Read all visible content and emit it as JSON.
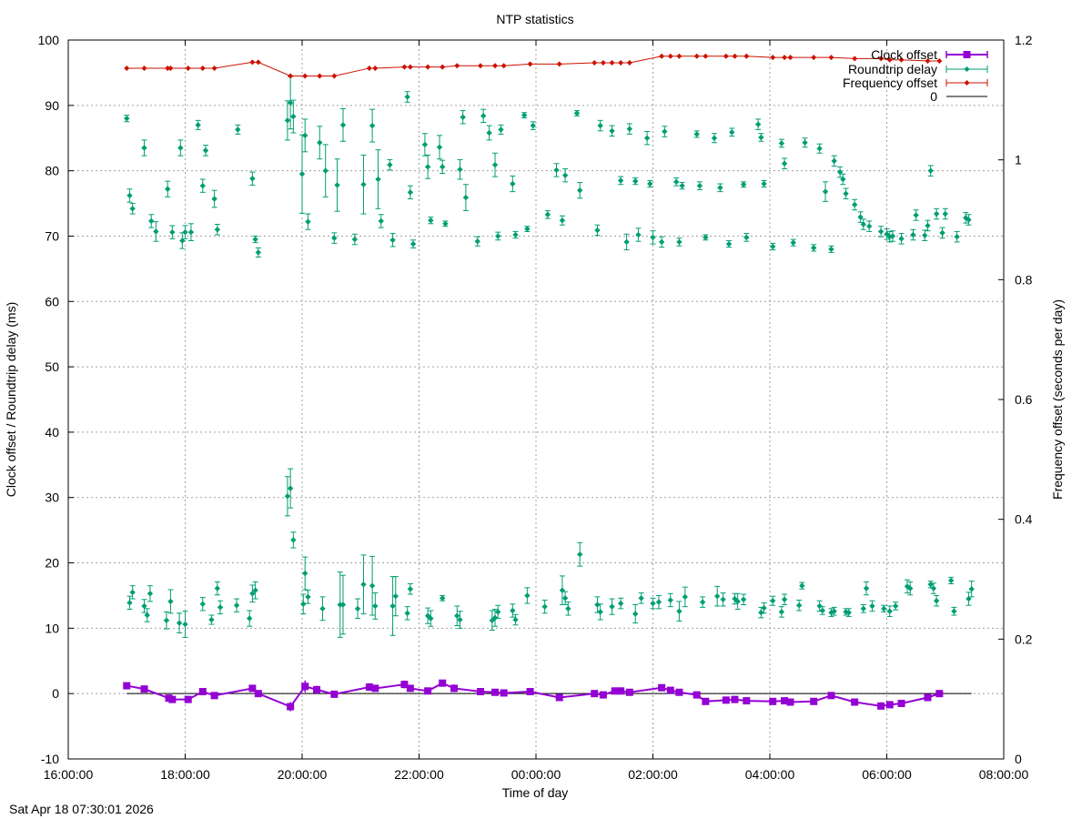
{
  "timestamp": "Sat Apr 18 07:30:01 2026",
  "colors": {
    "clock": "#9400d3",
    "roundtrip": "#009e73",
    "frequency": "#cc1100",
    "zero": "#000000",
    "grid": "#a0a0a0"
  },
  "chart_data": {
    "type": "scatter",
    "title": "NTP statistics",
    "xlabel": "Time of day",
    "ylabel": "Clock offset / Roundtrip delay (ms)",
    "y2label": "Frequency offset (seconds per day)",
    "xlim": [
      16.0,
      32.0
    ],
    "ylim": [
      -10,
      100
    ],
    "y2lim": [
      0,
      1.2
    ],
    "xticks": [
      16,
      18,
      20,
      22,
      24,
      26,
      28,
      30,
      32
    ],
    "xtick_labels": [
      "16:00:00",
      "18:00:00",
      "20:00:00",
      "22:00:00",
      "00:00:00",
      "02:00:00",
      "04:00:00",
      "06:00:00",
      "08:00:00"
    ],
    "yticks": [
      -10,
      0,
      10,
      20,
      30,
      40,
      50,
      60,
      70,
      80,
      90,
      100
    ],
    "ytick_labels": [
      "-10",
      "0",
      "10",
      "20",
      "30",
      "40",
      "50",
      "60",
      "70",
      "80",
      "90",
      "100"
    ],
    "y2ticks": [
      0,
      0.2,
      0.4,
      0.6,
      0.8,
      1.0,
      1.2
    ],
    "y2tick_labels": [
      "0",
      "0.2",
      "0.4",
      "0.6",
      "0.8",
      "1",
      "1.2"
    ],
    "grid": true,
    "legend_position": "top-right",
    "legend": [
      "Clock offset",
      "Roundtrip delay",
      "Frequency offset",
      "0"
    ],
    "series": [
      {
        "name": "Clock offset",
        "axis": "y1",
        "style": "linespoints-errorbars",
        "x": [
          17.0,
          17.3,
          17.72,
          17.78,
          18.05,
          18.3,
          18.5,
          19.15,
          19.25,
          19.8,
          20.05,
          20.25,
          20.55,
          21.15,
          21.25,
          21.75,
          21.85,
          22.15,
          22.4,
          22.6,
          23.05,
          23.3,
          23.45,
          23.9,
          24.4,
          25.0,
          25.15,
          25.35,
          25.45,
          25.6,
          26.15,
          26.3,
          26.45,
          26.75,
          26.9,
          27.25,
          27.4,
          27.6,
          28.05,
          28.25,
          28.35,
          28.75,
          29.05,
          29.45,
          29.9,
          30.05,
          30.25,
          30.7,
          30.9
        ],
        "y": [
          1.2,
          0.7,
          -0.7,
          -0.9,
          -0.9,
          0.3,
          -0.3,
          0.8,
          0.0,
          -2.0,
          1.1,
          0.6,
          -0.1,
          1.0,
          0.8,
          1.4,
          0.8,
          0.4,
          1.6,
          0.8,
          0.3,
          0.2,
          0.1,
          0.3,
          -0.6,
          0.0,
          -0.2,
          0.4,
          0.4,
          0.2,
          0.9,
          0.5,
          0.2,
          -0.2,
          -1.2,
          -1.0,
          -0.9,
          -1.1,
          -1.2,
          -1.1,
          -1.3,
          -1.2,
          -0.3,
          -1.3,
          -1.9,
          -1.7,
          -1.5,
          -0.6,
          0.0
        ],
        "err": [
          0.4,
          0.3,
          0.3,
          0.3,
          0.3,
          0.3,
          0.3,
          0.3,
          0.3,
          0.7,
          0.9,
          0.6,
          0.4,
          0.6,
          0.5,
          0.6,
          0.5,
          0.3,
          0.5,
          0.6,
          0.3,
          0.3,
          0.3,
          0.3,
          0.3,
          0.3,
          0.3,
          0.3,
          0.3,
          0.3,
          0.4,
          0.3,
          0.3,
          0.3,
          0.3,
          0.3,
          0.3,
          0.3,
          0.3,
          0.3,
          0.3,
          0.3,
          0.3,
          0.3,
          0.3,
          0.3,
          0.3,
          0.3,
          0.3
        ]
      },
      {
        "name": "Roundtrip delay",
        "axis": "y1",
        "style": "points-errorbars",
        "x": [
          17.0,
          17.05,
          17.1,
          17.3,
          17.42,
          17.5,
          17.7,
          17.78,
          17.92,
          17.95,
          18.0,
          18.1,
          18.22,
          18.3,
          18.35,
          18.5,
          18.55,
          18.9,
          19.15,
          19.2,
          19.25,
          19.75,
          19.8,
          19.85,
          20.0,
          20.05,
          20.1,
          20.3,
          20.4,
          20.55,
          20.6,
          20.7,
          20.9,
          21.05,
          21.2,
          21.3,
          21.35,
          21.5,
          21.55,
          21.8,
          21.85,
          21.9,
          22.1,
          22.15,
          22.2,
          22.35,
          22.4,
          22.45,
          22.7,
          22.75,
          22.8,
          23.0,
          23.1,
          23.2,
          23.3,
          23.35,
          23.4,
          23.6,
          23.65,
          23.8,
          23.85,
          23.95,
          24.2,
          24.35,
          24.45,
          24.5,
          24.7,
          24.75,
          25.05,
          25.1,
          25.3,
          25.45,
          25.55,
          25.6,
          25.7,
          25.75,
          25.9,
          25.95,
          26.0,
          26.15,
          26.2,
          26.4,
          26.45,
          26.5,
          26.75,
          26.8,
          26.9,
          27.05,
          27.15,
          27.3,
          27.35,
          27.55,
          27.6,
          27.8,
          27.85,
          27.9,
          28.05,
          28.2,
          28.25,
          28.4,
          28.6,
          28.75,
          28.85,
          28.95,
          29.05,
          29.1,
          29.2,
          29.25,
          29.3,
          29.45,
          29.55,
          29.6,
          29.7,
          29.9,
          30.0,
          30.05,
          30.1,
          30.25,
          30.45,
          30.5,
          30.65,
          30.7,
          30.75,
          30.85,
          30.95,
          31.0,
          31.2,
          31.35,
          31.4
        ],
        "y": [
          88.0,
          76.2,
          74.2,
          83.5,
          72.3,
          70.7,
          77.2,
          70.6,
          83.5,
          69.3,
          70.6,
          70.6,
          87.0,
          77.7,
          83.1,
          75.7,
          71.0,
          86.3,
          78.8,
          69.5,
          67.5,
          87.7,
          90.4,
          88.3,
          79.5,
          85.4,
          72.2,
          84.3,
          80.0,
          69.7,
          77.8,
          87.0,
          69.5,
          77.9,
          86.9,
          78.7,
          72.3,
          80.9,
          69.4,
          91.3,
          76.7,
          68.8,
          84.0,
          80.6,
          72.4,
          83.6,
          80.6,
          71.9,
          80.2,
          88.2,
          75.9,
          69.2,
          88.4,
          85.8,
          80.9,
          70.0,
          86.3,
          78.0,
          70.2,
          88.5,
          71.1,
          86.9,
          73.3,
          80.1,
          72.4,
          79.3,
          88.8,
          77.0,
          70.9,
          86.9,
          86.1,
          78.5,
          69.1,
          86.4,
          78.4,
          70.2,
          85.0,
          78.0,
          69.8,
          69.1,
          86.0,
          78.3,
          69.1,
          77.7,
          85.6,
          77.7,
          69.8,
          85.0,
          77.4,
          68.8,
          85.9,
          77.9,
          69.8,
          87.1,
          85.1,
          78.0,
          68.4,
          84.2,
          81.1,
          69.0,
          84.3,
          68.2,
          83.4,
          76.8,
          68.0,
          81.5,
          79.8,
          78.7,
          76.5,
          74.8,
          72.9,
          71.8,
          71.5,
          70.7,
          70.3,
          69.9,
          70.0,
          69.6,
          70.2,
          73.2,
          70.1,
          71.6,
          80.0,
          73.4,
          70.5,
          73.4,
          69.9,
          72.8,
          72.5
        ],
        "err": [
          0.5,
          1.0,
          0.8,
          1.2,
          1.0,
          1.5,
          1.2,
          1.0,
          1.2,
          1.2,
          1.0,
          1.3,
          0.7,
          1.0,
          0.8,
          1.3,
          0.8,
          0.7,
          1.0,
          0.5,
          0.7,
          3.0,
          4.0,
          2.5,
          6.0,
          2.5,
          1.2,
          2.5,
          4.0,
          0.8,
          4.0,
          2.5,
          0.8,
          4.5,
          2.5,
          4.5,
          1.0,
          0.8,
          1.0,
          0.8,
          1.0,
          0.6,
          1.7,
          1.8,
          0.5,
          1.8,
          1.0,
          0.4,
          1.5,
          1.0,
          2.0,
          0.7,
          1.0,
          1.1,
          1.8,
          0.6,
          0.7,
          1.2,
          0.5,
          0.4,
          0.4,
          0.6,
          0.6,
          1.0,
          0.7,
          1.0,
          0.4,
          1.2,
          0.8,
          0.8,
          0.8,
          0.6,
          1.2,
          0.8,
          0.5,
          1.0,
          1.0,
          0.5,
          1.0,
          0.8,
          0.8,
          0.6,
          0.6,
          0.5,
          0.5,
          0.6,
          0.4,
          0.7,
          0.6,
          0.5,
          0.6,
          0.4,
          0.6,
          0.8,
          0.6,
          0.5,
          0.5,
          0.6,
          0.8,
          0.5,
          0.7,
          0.5,
          0.7,
          1.5,
          0.5,
          0.8,
          0.8,
          0.8,
          0.8,
          0.8,
          0.8,
          0.8,
          0.8,
          0.8,
          0.8,
          0.8,
          0.8,
          0.8,
          0.8,
          0.8,
          0.8,
          0.8,
          0.8,
          0.8,
          0.8,
          0.8,
          0.8,
          0.8,
          0.8
        ]
      },
      {
        "name": "Roundtrip delay (low group)",
        "axis": "y1",
        "style": "points-errorbars",
        "legend": false,
        "x": [
          17.05,
          17.1,
          17.3,
          17.35,
          17.4,
          17.68,
          17.75,
          17.9,
          18.0,
          18.3,
          18.45,
          18.55,
          18.6,
          18.88,
          19.1,
          19.15,
          19.2,
          19.75,
          19.8,
          19.85,
          20.02,
          20.05,
          20.1,
          20.35,
          20.65,
          20.7,
          20.95,
          21.05,
          21.2,
          21.25,
          21.55,
          21.6,
          21.8,
          21.85,
          22.15,
          22.2,
          22.4,
          22.65,
          22.7,
          23.25,
          23.3,
          23.35,
          23.6,
          23.65,
          23.85,
          24.15,
          24.45,
          24.5,
          24.55,
          24.75,
          25.05,
          25.1,
          25.3,
          25.45,
          25.7,
          25.8,
          26.0,
          26.1,
          26.3,
          26.45,
          26.55,
          26.85,
          27.1,
          27.2,
          27.4,
          27.45,
          27.55,
          27.85,
          27.9,
          28.05,
          28.2,
          28.25,
          28.5,
          28.55,
          28.85,
          28.9,
          29.05,
          29.1,
          29.3,
          29.35,
          29.6,
          29.65,
          29.75,
          29.95,
          30.05,
          30.15,
          30.35,
          30.4,
          30.75,
          30.8,
          30.85,
          31.1,
          31.15,
          31.4,
          31.45
        ],
        "y": [
          13.9,
          15.5,
          13.4,
          12.0,
          15.3,
          11.2,
          14.1,
          10.8,
          10.6,
          13.7,
          11.3,
          16.1,
          13.2,
          13.5,
          11.5,
          15.3,
          15.8,
          30.2,
          31.4,
          23.5,
          13.7,
          18.4,
          14.8,
          13.0,
          13.6,
          13.6,
          13.0,
          16.7,
          16.5,
          13.4,
          13.4,
          14.9,
          12.3,
          16.0,
          11.9,
          11.5,
          14.6,
          11.9,
          11.3,
          11.2,
          11.6,
          12.5,
          12.7,
          11.3,
          15.0,
          13.3,
          15.8,
          14.6,
          13.0,
          21.3,
          13.6,
          12.5,
          13.3,
          13.8,
          12.2,
          14.6,
          13.8,
          14.0,
          14.3,
          12.6,
          14.8,
          14.0,
          14.9,
          14.4,
          14.5,
          14.1,
          14.4,
          12.4,
          13.1,
          14.2,
          12.5,
          14.4,
          13.5,
          16.5,
          13.4,
          12.7,
          12.4,
          12.6,
          12.5,
          12.4,
          13.0,
          16.1,
          13.4,
          13.0,
          12.6,
          13.4,
          16.4,
          16.1,
          16.7,
          16.1,
          14.2,
          17.3,
          12.6,
          14.5,
          16.0
        ],
        "err": [
          1.0,
          1.0,
          1.0,
          1.0,
          1.2,
          1.3,
          1.8,
          1.5,
          2.0,
          1.0,
          0.7,
          1.0,
          1.0,
          1.0,
          1.2,
          1.3,
          1.3,
          3.0,
          3.0,
          1.2,
          1.5,
          2.5,
          1.0,
          1.8,
          5.0,
          4.5,
          1.5,
          4.5,
          4.5,
          2.0,
          4.5,
          3.0,
          1.0,
          0.8,
          1.2,
          1.2,
          0.4,
          1.5,
          1.3,
          1.5,
          1.3,
          1.0,
          1.0,
          0.8,
          1.2,
          1.0,
          2.2,
          1.0,
          1.0,
          1.8,
          1.2,
          1.2,
          1.2,
          0.8,
          1.4,
          0.8,
          0.8,
          1.0,
          1.0,
          1.5,
          1.5,
          0.8,
          1.5,
          1.0,
          0.8,
          1.2,
          0.8,
          0.8,
          0.8,
          0.7,
          0.8,
          0.8,
          0.8,
          0.5,
          0.8,
          0.6,
          0.6,
          0.6,
          0.5,
          0.6,
          0.6,
          1.0,
          0.8,
          0.5,
          0.8,
          0.6,
          1.0,
          1.0,
          0.5,
          0.8,
          0.8,
          0.5,
          0.6,
          1.0,
          1.2
        ]
      },
      {
        "name": "Frequency offset",
        "axis": "y2",
        "style": "linespoints-errorbars",
        "x": [
          17.0,
          17.3,
          17.7,
          17.75,
          18.05,
          18.3,
          18.5,
          19.15,
          19.25,
          19.8,
          20.05,
          20.3,
          20.55,
          21.15,
          21.25,
          21.75,
          21.85,
          22.15,
          22.4,
          22.65,
          23.05,
          23.3,
          23.45,
          23.9,
          24.4,
          25.0,
          25.15,
          25.3,
          25.45,
          25.6,
          26.15,
          26.3,
          26.45,
          26.75,
          26.9,
          27.25,
          27.4,
          27.6,
          28.05,
          28.25,
          28.35,
          28.75,
          29.05,
          29.45,
          29.9,
          30.05,
          30.25,
          30.7,
          30.9
        ],
        "y": [
          1.153,
          1.153,
          1.153,
          1.153,
          1.153,
          1.153,
          1.153,
          1.163,
          1.163,
          1.14,
          1.14,
          1.14,
          1.14,
          1.153,
          1.153,
          1.155,
          1.155,
          1.155,
          1.155,
          1.157,
          1.157,
          1.157,
          1.157,
          1.16,
          1.16,
          1.162,
          1.162,
          1.162,
          1.162,
          1.162,
          1.173,
          1.173,
          1.173,
          1.173,
          1.173,
          1.173,
          1.173,
          1.173,
          1.171,
          1.171,
          1.171,
          1.171,
          1.171,
          1.169,
          1.169,
          1.167,
          1.167,
          1.165,
          1.165
        ]
      },
      {
        "name": "0",
        "axis": "y1",
        "style": "line",
        "x": [
          17.0,
          31.45
        ],
        "y": [
          0,
          0
        ]
      }
    ]
  }
}
